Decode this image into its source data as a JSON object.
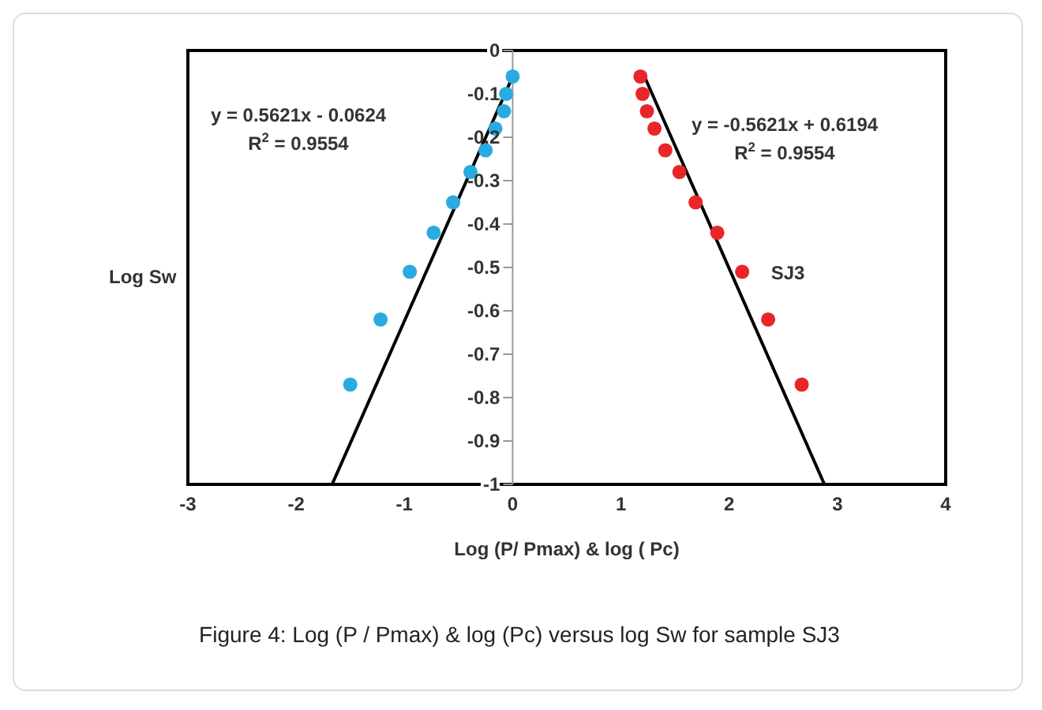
{
  "chart_data": {
    "type": "scatter",
    "xlabel": "Log (P/ Pmax) & log ( Pc)",
    "ylabel": "Log Sw",
    "xlim": [
      -3,
      4
    ],
    "xticks": [
      -3,
      -2,
      -1,
      0,
      1,
      2,
      3,
      4
    ],
    "ylim": [
      -1,
      0
    ],
    "yticks": [
      {
        "value": -1,
        "label": "-1"
      },
      -0.9,
      -0.8,
      -0.7,
      -0.6,
      -0.5,
      -0.4,
      -0.3,
      -0.2,
      -0.1,
      0
    ],
    "marker": "circle",
    "series": [
      {
        "color": "#29abe2",
        "x": [
          0,
          -0.06,
          -0.08,
          -0.16,
          -0.25,
          -0.39,
          -0.55,
          -0.73,
          -0.95,
          -1.22,
          -1.5
        ],
        "values": [
          -0.06,
          -0.1,
          -0.14,
          -0.18,
          -0.23,
          -0.28,
          -0.35,
          -0.42,
          -0.51,
          -0.62,
          -0.77
        ]
      },
      {
        "color": "#e8262a",
        "x": [
          1.18,
          1.2,
          1.24,
          1.31,
          1.41,
          1.54,
          1.69,
          1.89,
          2.12,
          2.36,
          2.67
        ],
        "values": [
          -0.06,
          -0.1,
          -0.14,
          -0.18,
          -0.23,
          -0.28,
          -0.35,
          -0.42,
          -0.51,
          -0.62,
          -0.77
        ]
      },
      {
        "type": "line",
        "color": "#000000",
        "marker": "none",
        "x": [
          0,
          -1.668
        ],
        "values": [
          -0.06,
          -1
        ]
      },
      {
        "type": "line",
        "color": "#000000",
        "marker": "none",
        "x": [
          1.2,
          2.88
        ],
        "values": [
          -0.05,
          -1
        ]
      }
    ],
    "annotations": [
      "y = 0.5621x - 0.0624",
      "R$^{2}$ = 0.9554",
      "y = -0.5621x + 0.6194",
      "R$^{2}$ = 0.9554",
      "SJ3",
      "Figure 4: Log (P / Pmax) & log (Pc) versus log Sw for sample SJ3"
    ]
  }
}
